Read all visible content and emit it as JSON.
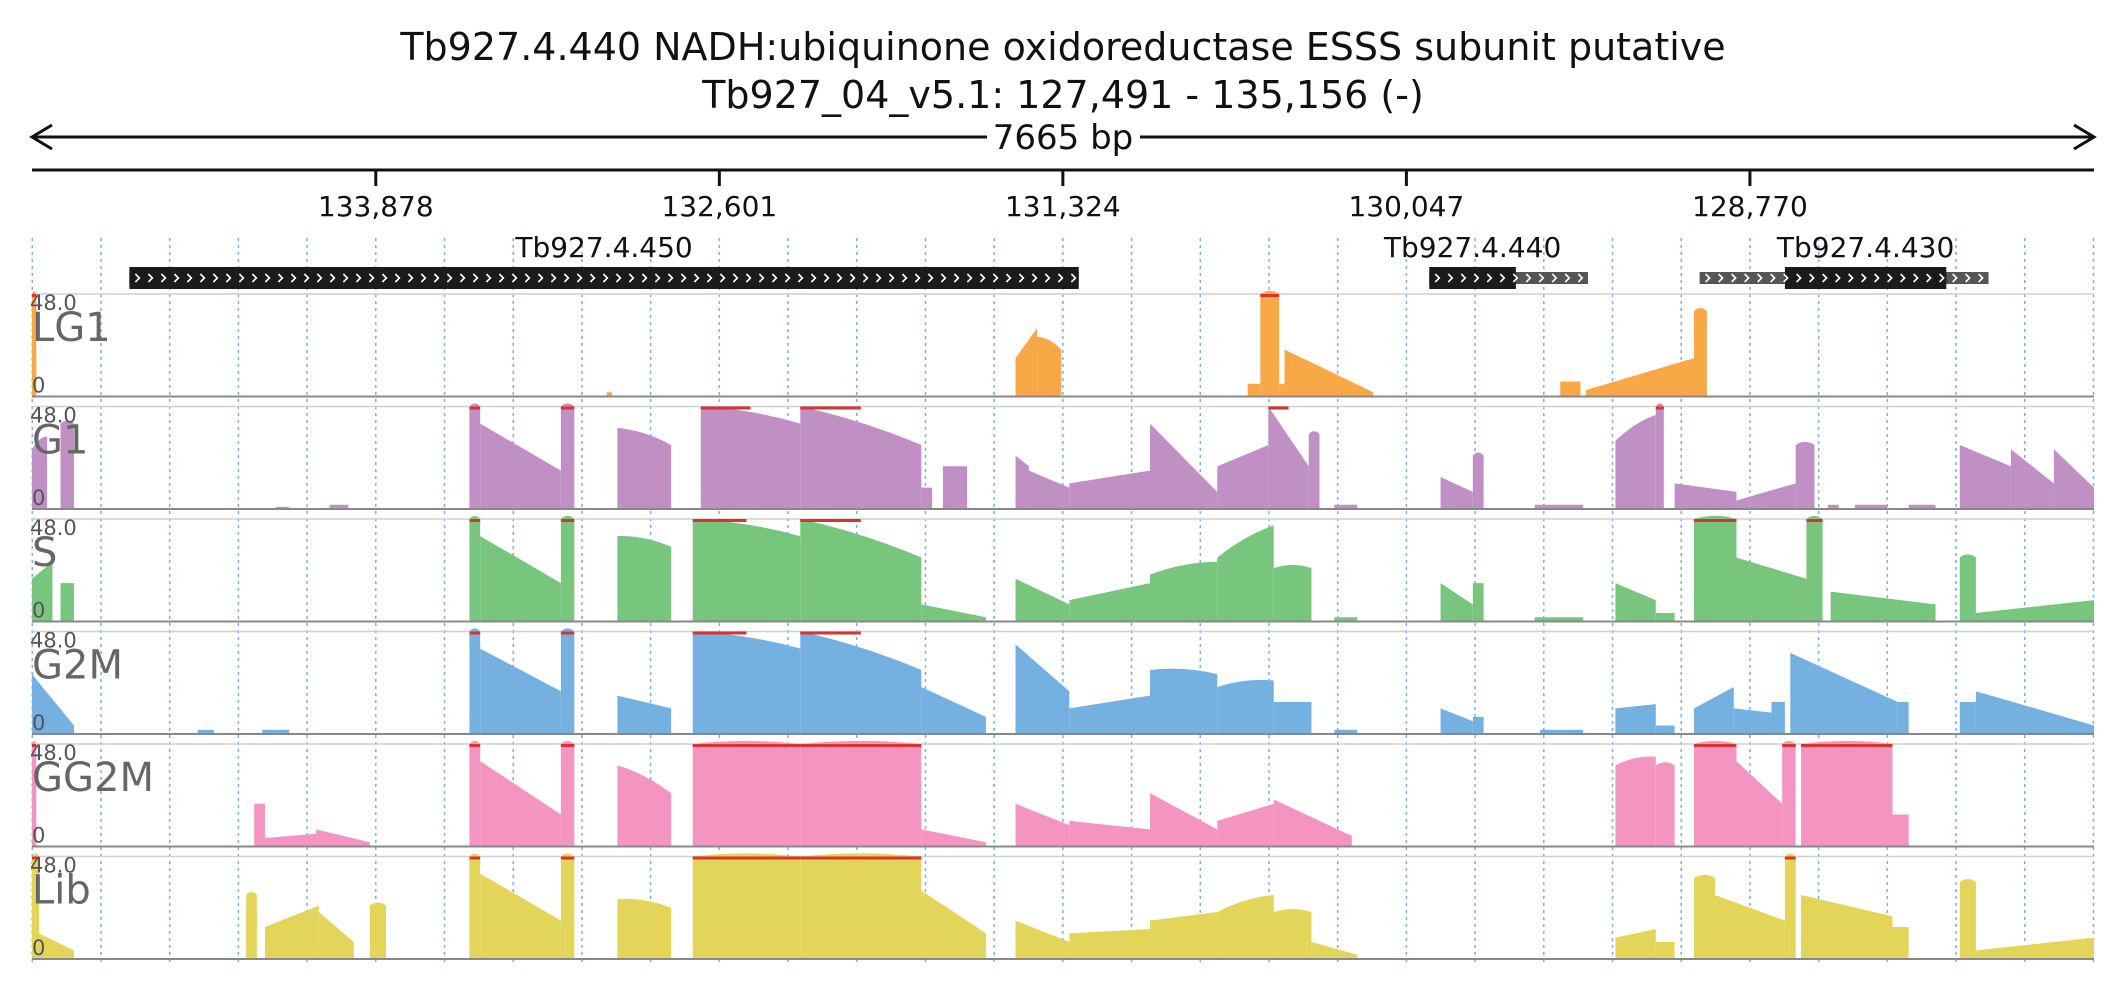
{
  "title_line1": "Tb927.4.440  NADH:ubiquinone oxidoreductase  ESSS subunit  putative",
  "title_line2": "Tb927_04_v5.1: 127,491 - 135,156 (-)",
  "span_label": "7665 bp",
  "chart_data": {
    "type": "area",
    "region": {
      "chromosome": "Tb927_04_v5.1",
      "start": 127491,
      "end": 135156,
      "strand": "-"
    },
    "x_axis": {
      "reversed": true,
      "ticks": [
        133878,
        132601,
        131324,
        130047,
        128770
      ],
      "tick_labels": [
        "133,878",
        "132,601",
        "131,324",
        "130,047",
        "128,770"
      ]
    },
    "grid": true,
    "genes": [
      {
        "name": "Tb927.4.450",
        "start": 131265,
        "end": 134794,
        "cds_start": 131265,
        "cds_end": 134794,
        "direction": "right"
      },
      {
        "name": "Tb927.4.440",
        "start": 129372,
        "end": 129962,
        "cds_start": 129640,
        "cds_end": 129962,
        "direction": "right"
      },
      {
        "name": "Tb927.4.430",
        "start": 127883,
        "end": 128957,
        "cds_start": 128040,
        "cds_end": 128640,
        "direction": "right"
      }
    ],
    "y_scale": {
      "min_label": "0",
      "max_label": "48.0",
      "max": 48
    },
    "tracks": [
      {
        "name": "LG1",
        "color": "#f9a848",
        "segments": [
          [
            135156,
            135140,
            48,
            48
          ],
          [
            133020,
            133000,
            2,
            2
          ],
          [
            131500,
            131420,
            18,
            32
          ],
          [
            131420,
            131330,
            28,
            22
          ],
          [
            130637,
            130590,
            6,
            6
          ],
          [
            130590,
            130520,
            48,
            48
          ],
          [
            130520,
            130500,
            6,
            6
          ],
          [
            130500,
            130170,
            22,
            2
          ],
          [
            129475,
            129400,
            7,
            7
          ],
          [
            129380,
            128978,
            3,
            18
          ],
          [
            128978,
            128930,
            40,
            40
          ]
        ]
      },
      {
        "name": "G1",
        "color": "#c090c5",
        "segments": [
          [
            135156,
            135100,
            28,
            34
          ],
          [
            135050,
            135000,
            40,
            40
          ],
          [
            134250,
            134200,
            1,
            1
          ],
          [
            134050,
            133980,
            2,
            2
          ],
          [
            133530,
            133490,
            48,
            48
          ],
          [
            133490,
            133190,
            40,
            18
          ],
          [
            133190,
            133140,
            48,
            48
          ],
          [
            132980,
            132780,
            38,
            30
          ],
          [
            132670,
            132300,
            48,
            40
          ],
          [
            132300,
            131850,
            48,
            30
          ],
          [
            131850,
            131810,
            10,
            10
          ],
          [
            131770,
            131680,
            20,
            20
          ],
          [
            131500,
            131450,
            25,
            20
          ],
          [
            131450,
            131300,
            18,
            10
          ],
          [
            131300,
            131000,
            12,
            18
          ],
          [
            131000,
            130750,
            40,
            8
          ],
          [
            130750,
            130560,
            20,
            30
          ],
          [
            130560,
            130410,
            48,
            20
          ],
          [
            130410,
            130370,
            35,
            35
          ],
          [
            130315,
            130230,
            2,
            2
          ],
          [
            129920,
            129800,
            15,
            8
          ],
          [
            129800,
            129760,
            25,
            25
          ],
          [
            129570,
            129390,
            2,
            2
          ],
          [
            129270,
            129120,
            32,
            44
          ],
          [
            129120,
            129090,
            48,
            48
          ],
          [
            129050,
            128820,
            12,
            8
          ],
          [
            128820,
            128600,
            4,
            12
          ],
          [
            128600,
            128530,
            30,
            30
          ],
          [
            128480,
            128440,
            2,
            2
          ],
          [
            128380,
            128260,
            2,
            2
          ],
          [
            128180,
            128080,
            2,
            2
          ],
          [
            127990,
            127800,
            30,
            20
          ],
          [
            127800,
            127640,
            28,
            12
          ],
          [
            127640,
            127491,
            28,
            10
          ]
        ]
      },
      {
        "name": "S",
        "color": "#78c67e",
        "segments": [
          [
            135156,
            135080,
            20,
            28
          ],
          [
            135050,
            135000,
            18,
            18
          ],
          [
            133530,
            133490,
            48,
            48
          ],
          [
            133490,
            133190,
            40,
            18
          ],
          [
            133190,
            133140,
            48,
            48
          ],
          [
            132980,
            132780,
            40,
            35
          ],
          [
            132700,
            132300,
            48,
            40
          ],
          [
            132300,
            131850,
            48,
            30
          ],
          [
            131850,
            131610,
            8,
            2
          ],
          [
            131500,
            131300,
            20,
            8
          ],
          [
            131300,
            131000,
            10,
            18
          ],
          [
            131000,
            130750,
            22,
            28
          ],
          [
            130750,
            130540,
            30,
            45
          ],
          [
            130540,
            130400,
            25,
            25
          ],
          [
            130315,
            130230,
            2,
            2
          ],
          [
            129920,
            129800,
            18,
            8
          ],
          [
            129800,
            129760,
            18,
            18
          ],
          [
            129570,
            129390,
            2,
            2
          ],
          [
            129270,
            129120,
            18,
            10
          ],
          [
            129120,
            129050,
            4,
            4
          ],
          [
            128978,
            128820,
            48,
            48
          ],
          [
            128820,
            128560,
            30,
            20
          ],
          [
            128560,
            128500,
            48,
            48
          ],
          [
            128470,
            128080,
            14,
            8
          ],
          [
            127990,
            127930,
            30,
            30
          ],
          [
            127930,
            127491,
            4,
            10
          ]
        ]
      },
      {
        "name": "G2M",
        "color": "#74b1e0",
        "segments": [
          [
            135156,
            135000,
            28,
            4
          ],
          [
            134540,
            134480,
            2,
            2
          ],
          [
            134300,
            134200,
            2,
            2
          ],
          [
            133530,
            133490,
            48,
            48
          ],
          [
            133490,
            133190,
            40,
            20
          ],
          [
            133190,
            133140,
            48,
            48
          ],
          [
            132980,
            132780,
            18,
            12
          ],
          [
            132700,
            132300,
            48,
            40
          ],
          [
            132300,
            131850,
            48,
            30
          ],
          [
            131850,
            131610,
            22,
            8
          ],
          [
            131500,
            131300,
            42,
            20
          ],
          [
            131300,
            131000,
            12,
            18
          ],
          [
            131000,
            130750,
            30,
            28
          ],
          [
            130750,
            130540,
            22,
            25
          ],
          [
            130540,
            130400,
            15,
            15
          ],
          [
            130315,
            130230,
            2,
            2
          ],
          [
            129920,
            129800,
            12,
            6
          ],
          [
            129800,
            129760,
            8,
            8
          ],
          [
            129550,
            129390,
            2,
            2
          ],
          [
            129270,
            129120,
            12,
            14
          ],
          [
            129120,
            129050,
            4,
            4
          ],
          [
            128978,
            128830,
            12,
            22
          ],
          [
            128830,
            128690,
            12,
            10
          ],
          [
            128690,
            128640,
            15,
            15
          ],
          [
            128620,
            128220,
            38,
            15
          ],
          [
            128220,
            128180,
            15,
            15
          ],
          [
            127990,
            127930,
            15,
            15
          ],
          [
            127930,
            127491,
            20,
            4
          ]
        ]
      },
      {
        "name": "GG2M",
        "color": "#f494c0",
        "segments": [
          [
            135156,
            135140,
            48,
            48
          ],
          [
            134330,
            134290,
            20,
            20
          ],
          [
            134290,
            134100,
            4,
            6
          ],
          [
            134100,
            133900,
            8,
            2
          ],
          [
            133530,
            133490,
            48,
            48
          ],
          [
            133490,
            133190,
            40,
            15
          ],
          [
            133190,
            133140,
            48,
            48
          ],
          [
            132980,
            132780,
            38,
            25
          ],
          [
            132700,
            132300,
            48,
            48
          ],
          [
            132300,
            131850,
            48,
            48
          ],
          [
            131850,
            131610,
            8,
            2
          ],
          [
            131500,
            131300,
            20,
            10
          ],
          [
            131300,
            131000,
            12,
            8
          ],
          [
            131000,
            130750,
            25,
            8
          ],
          [
            130750,
            130540,
            12,
            20
          ],
          [
            130540,
            130250,
            22,
            5
          ],
          [
            129270,
            129120,
            38,
            42
          ],
          [
            129120,
            129050,
            38,
            38
          ],
          [
            128978,
            128820,
            48,
            48
          ],
          [
            128820,
            128650,
            40,
            20
          ],
          [
            128650,
            128600,
            48,
            48
          ],
          [
            128580,
            128240,
            48,
            48
          ],
          [
            128240,
            128180,
            15,
            15
          ]
        ]
      },
      {
        "name": "Lib",
        "color": "#e3d55a",
        "segments": [
          [
            135156,
            135130,
            48,
            48
          ],
          [
            135130,
            135000,
            12,
            4
          ],
          [
            134360,
            134320,
            30,
            30
          ],
          [
            134290,
            134090,
            15,
            25
          ],
          [
            134090,
            133960,
            22,
            8
          ],
          [
            133900,
            133840,
            25,
            25
          ],
          [
            133530,
            133490,
            48,
            48
          ],
          [
            133490,
            133190,
            40,
            18
          ],
          [
            133190,
            133140,
            48,
            48
          ],
          [
            132980,
            132780,
            28,
            24
          ],
          [
            132700,
            132300,
            48,
            48
          ],
          [
            132300,
            131850,
            48,
            48
          ],
          [
            131850,
            131610,
            32,
            12
          ],
          [
            131500,
            131300,
            18,
            8
          ],
          [
            131300,
            131000,
            12,
            14
          ],
          [
            131000,
            130750,
            18,
            22
          ],
          [
            130750,
            130540,
            22,
            30
          ],
          [
            130540,
            130400,
            22,
            22
          ],
          [
            130400,
            130230,
            8,
            2
          ],
          [
            129270,
            129120,
            10,
            14
          ],
          [
            129120,
            129050,
            8,
            8
          ],
          [
            128978,
            128900,
            38,
            38
          ],
          [
            128900,
            128640,
            30,
            18
          ],
          [
            128640,
            128600,
            48,
            48
          ],
          [
            128580,
            128240,
            30,
            20
          ],
          [
            128240,
            128180,
            15,
            15
          ],
          [
            127990,
            127930,
            36,
            36
          ],
          [
            127930,
            127491,
            4,
            10
          ]
        ]
      }
    ]
  },
  "colors": {
    "saturated": "#d9322f",
    "grid": "#79aee8",
    "gene_cds": "#1b1b1b",
    "gene_utr": "#555555"
  }
}
